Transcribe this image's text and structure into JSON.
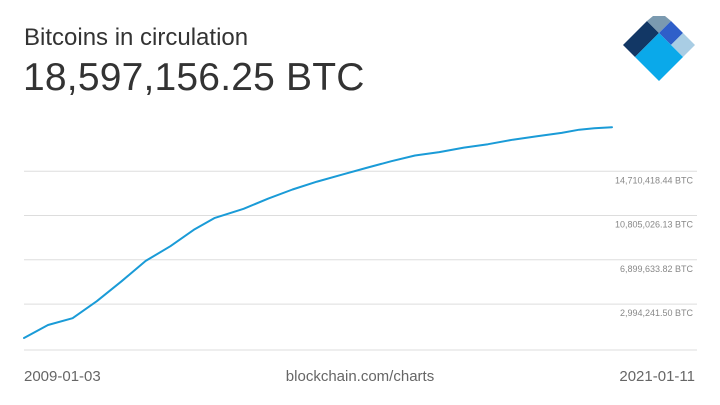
{
  "header": {
    "title": "Bitcoins in circulation",
    "value": "18,597,156.25 BTC"
  },
  "footer": {
    "start_date": "2009-01-03",
    "source": "blockchain.com/charts",
    "end_date": "2021-01-11"
  },
  "colors": {
    "line": "#1a9bd7",
    "grid": "#dddddd",
    "text": "#333333",
    "logo_dark": "#123765",
    "logo_steel": "#7b9ab0",
    "logo_blue": "#2f5fc9",
    "logo_light": "#a9cde4",
    "logo_cyan": "#0aa9ea"
  },
  "chart_data": {
    "type": "line",
    "x": [
      "2009-01-03",
      "2009-07-01",
      "2010-01-01",
      "2010-07-01",
      "2011-01-01",
      "2011-07-01",
      "2012-01-01",
      "2012-07-01",
      "2012-11-28",
      "2013-07-01",
      "2014-01-01",
      "2014-07-01",
      "2015-01-01",
      "2015-07-01",
      "2016-01-01",
      "2016-07-09",
      "2017-01-01",
      "2017-07-01",
      "2018-01-01",
      "2018-07-01",
      "2019-01-01",
      "2019-07-01",
      "2020-01-01",
      "2020-05-11",
      "2020-09-01",
      "2021-01-11"
    ],
    "values": [
      0,
      1150000,
      1750000,
      3250000,
      5000000,
      6800000,
      8100000,
      9600000,
      10600000,
      11400000,
      12300000,
      13100000,
      13800000,
      14400000,
      15000000,
      15600000,
      16100000,
      16400000,
      16800000,
      17100000,
      17500000,
      17800000,
      18100000,
      18380000,
      18500000,
      18597156.25
    ],
    "ylim": [
      0,
      21000000
    ],
    "yticks": [
      2994241.5,
      6899633.82,
      10805026.13,
      14710418.44
    ],
    "ytick_labels": [
      "2,994,241.50 BTC",
      "6,899,633.82 BTC",
      "10,805,026.13 BTC",
      "14,710,418.44 BTC"
    ],
    "xlim": [
      "2009-01-03",
      "2021-01-11"
    ],
    "grid": true
  }
}
